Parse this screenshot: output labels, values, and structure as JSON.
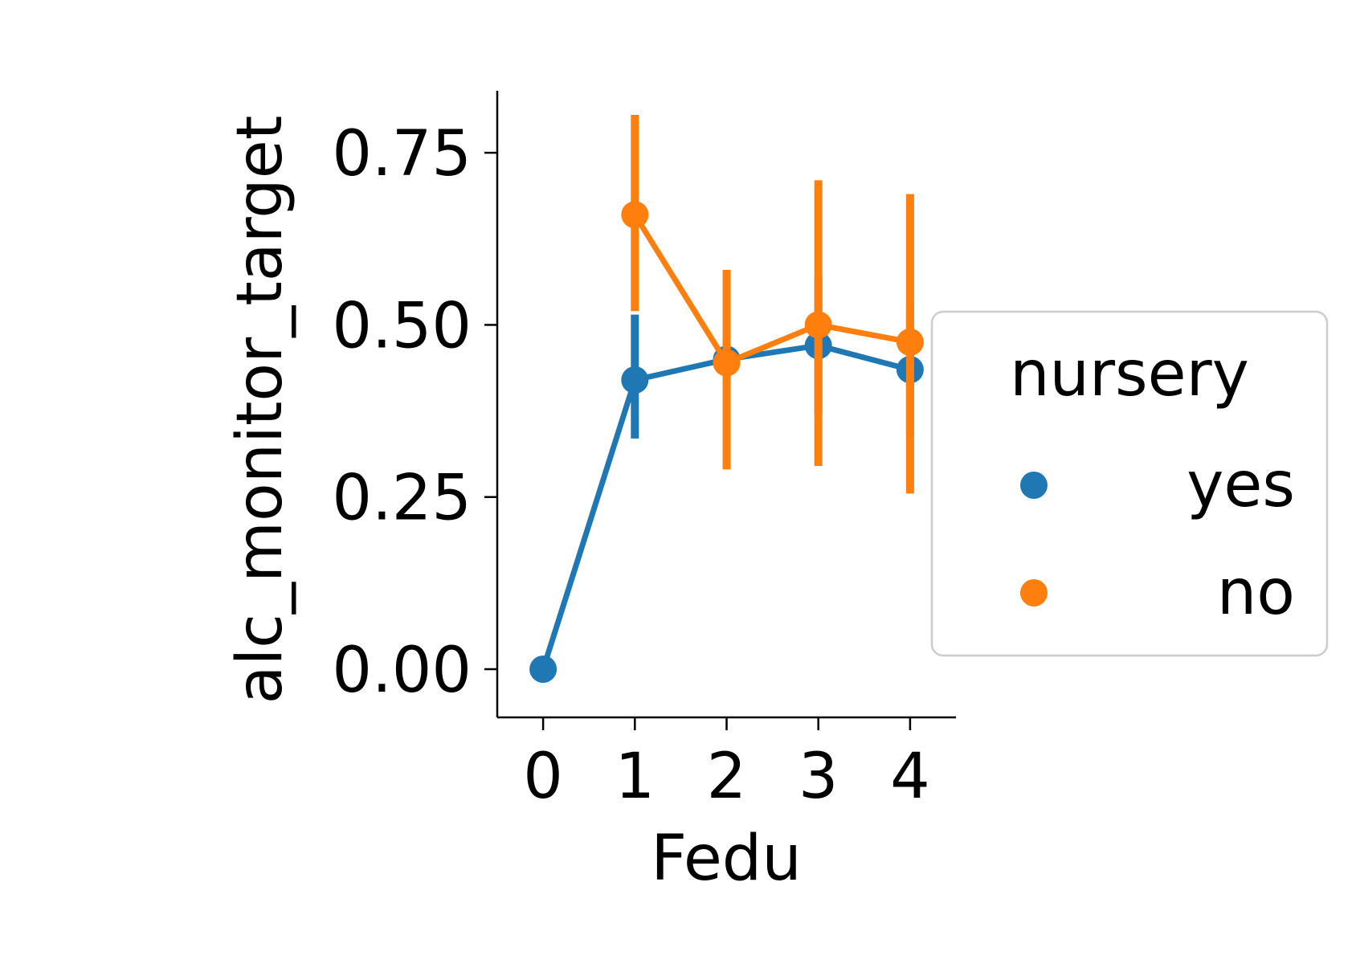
{
  "chart_data": {
    "type": "line",
    "title": "",
    "xlabel": "Fedu",
    "ylabel": "alc_monitor_target",
    "categories": [
      "0",
      "1",
      "2",
      "3",
      "4"
    ],
    "x": [
      0,
      1,
      2,
      3,
      4
    ],
    "ylim": [
      -0.07,
      0.84
    ],
    "yticks": [
      0.0,
      0.25,
      0.5,
      0.75
    ],
    "ytick_labels": [
      "0.00",
      "0.25",
      "0.50",
      "0.75"
    ],
    "grid": false,
    "legend": {
      "title": "nursery",
      "placement": "center-right outside"
    },
    "series": [
      {
        "name": "yes",
        "color": "#1f77b4",
        "values": [
          0.0,
          0.42,
          0.45,
          0.47,
          0.435
        ],
        "ci_low": [
          null,
          0.335,
          null,
          0.37,
          0.34
        ],
        "ci_high": [
          null,
          0.515,
          null,
          0.57,
          0.53
        ]
      },
      {
        "name": "no",
        "color": "#ff7f0e",
        "values": [
          null,
          0.66,
          0.445,
          0.5,
          0.475
        ],
        "ci_low": [
          null,
          0.52,
          0.29,
          0.295,
          0.255
        ],
        "ci_high": [
          null,
          0.805,
          0.58,
          0.71,
          0.69
        ]
      }
    ]
  }
}
